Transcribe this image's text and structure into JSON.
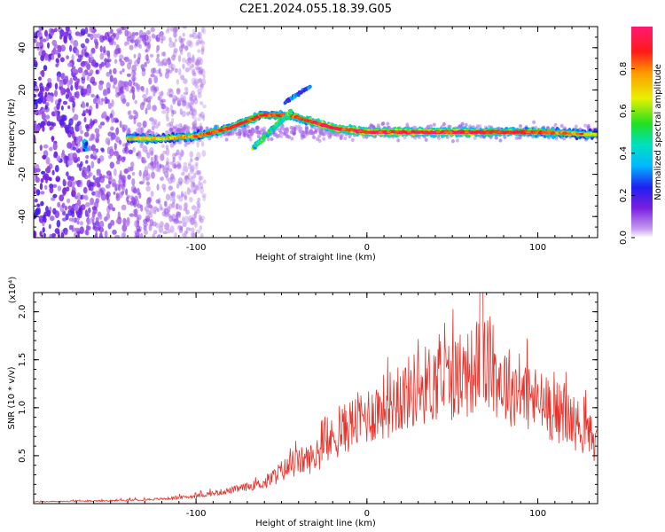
{
  "title": "C2E1.2024.055.18.39.G05",
  "chart_data": [
    {
      "type": "heatmap",
      "xlabel": "Height of straight line (km)",
      "ylabel": "Frequency (Hz)",
      "xlim": [
        -195,
        135
      ],
      "ylim": [
        -50,
        50
      ],
      "xticks": [
        -100,
        0,
        100
      ],
      "yticks": [
        -40,
        -20,
        0,
        20,
        40
      ],
      "colorbar": {
        "label": "Normalized spectral amplitude",
        "range": [
          0,
          1
        ],
        "ticks": [
          0.0,
          0.2,
          0.4,
          0.6,
          0.8
        ]
      },
      "ridge": [
        {
          "x": -165,
          "y": -6,
          "amp": 0.4
        },
        {
          "x": -140,
          "y": -3,
          "amp": 0.55
        },
        {
          "x": -120,
          "y": -3,
          "amp": 0.55
        },
        {
          "x": -100,
          "y": -2,
          "amp": 0.6
        },
        {
          "x": -80,
          "y": 2,
          "amp": 0.75
        },
        {
          "x": -62,
          "y": 8,
          "amp": 0.7
        },
        {
          "x": -62,
          "y": -6,
          "amp": 0.5
        },
        {
          "x": -45,
          "y": 8,
          "amp": 0.65
        },
        {
          "x": -35,
          "y": 22,
          "amp": 0.35
        },
        {
          "x": -20,
          "y": 2,
          "amp": 0.85
        },
        {
          "x": 0,
          "y": 0,
          "amp": 0.9
        },
        {
          "x": 50,
          "y": 0,
          "amp": 0.85
        },
        {
          "x": 100,
          "y": 0,
          "amp": 0.7
        },
        {
          "x": 130,
          "y": -1,
          "amp": 0.5
        }
      ],
      "noise_region": {
        "x_from": -195,
        "x_to": -115
      }
    },
    {
      "type": "line",
      "xlabel": "Height of straight line (km)",
      "ylabel": "SNR (10 * v/v)",
      "yscale_label": "(x10⁴)",
      "xlim": [
        -195,
        135
      ],
      "ylim": [
        0,
        2.2
      ],
      "xticks": [
        -100,
        0,
        100
      ],
      "yticks": [
        0.5,
        1.0,
        1.5,
        2.0
      ],
      "series": [
        {
          "color": "#e8322a",
          "x": [
            -195,
            -150,
            -120,
            -100,
            -80,
            -60,
            -50,
            -40,
            -30,
            -20,
            -10,
            0,
            10,
            20,
            30,
            40,
            50,
            60,
            67,
            80,
            90,
            100,
            110,
            120,
            135
          ],
          "y": [
            0.02,
            0.03,
            0.05,
            0.08,
            0.14,
            0.22,
            0.35,
            0.45,
            0.5,
            0.7,
            0.85,
            0.95,
            1.05,
            1.15,
            1.25,
            1.32,
            1.35,
            1.4,
            1.55,
            1.3,
            1.2,
            1.1,
            1.0,
            0.9,
            0.65
          ]
        }
      ]
    }
  ]
}
